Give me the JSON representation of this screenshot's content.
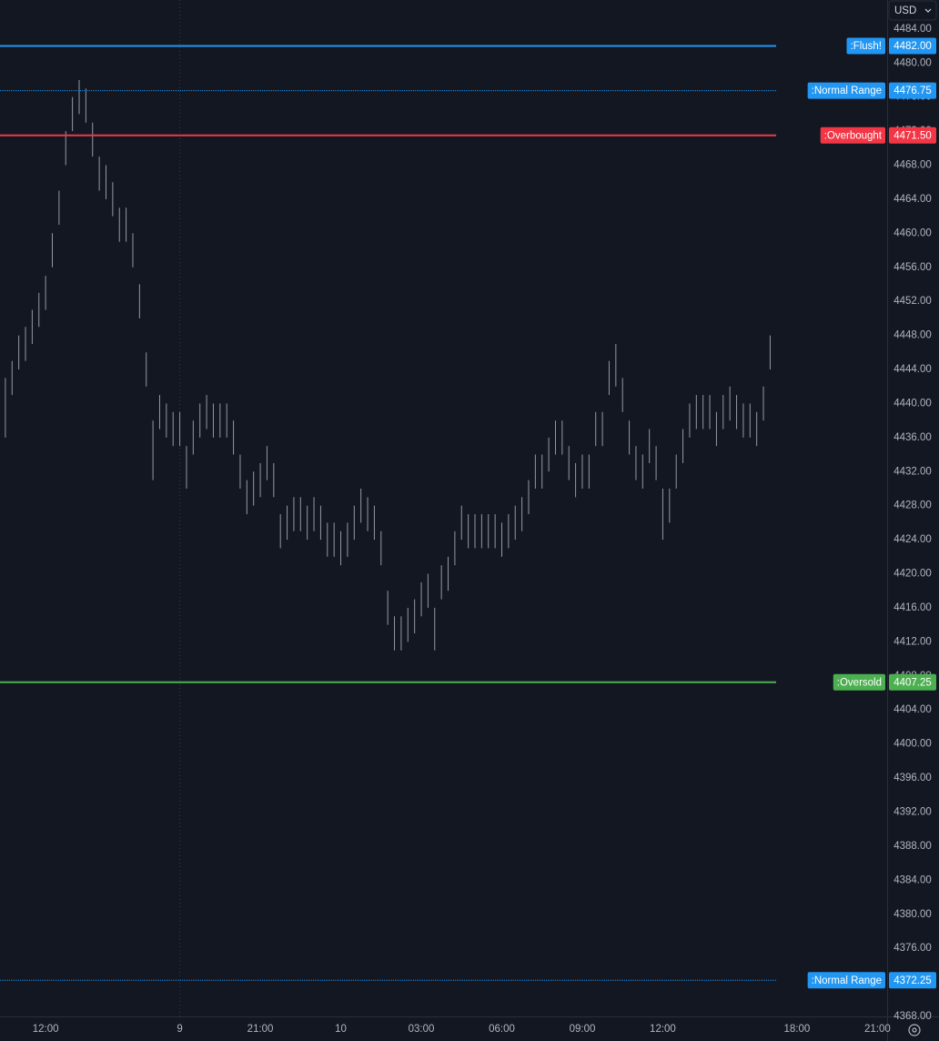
{
  "chart_data": {
    "type": "range",
    "currency": "USD",
    "bar_color": "#9598a1",
    "grid": false,
    "xlim": [
      10.3,
      43.36
    ],
    "xticks": [
      {
        "value": 12,
        "label": "12:00"
      },
      {
        "value": 17,
        "label": "9"
      },
      {
        "value": 20,
        "label": "21:00"
      },
      {
        "value": 23,
        "label": "10"
      },
      {
        "value": 26,
        "label": "03:00"
      },
      {
        "value": 29,
        "label": "06:00"
      },
      {
        "value": 32,
        "label": "09:00"
      },
      {
        "value": 35,
        "label": "12:00"
      },
      {
        "value": 40,
        "label": "18:00"
      },
      {
        "value": 43,
        "label": "21:00"
      }
    ],
    "day_divider": 17,
    "ylim": [
      4368,
      4487.4
    ],
    "yticks": [
      {
        "value": 4484,
        "label": "4484.00"
      },
      {
        "value": 4480,
        "label": "4480.00"
      },
      {
        "value": 4476,
        "label": "4476.00"
      },
      {
        "value": 4472,
        "label": "4472.00"
      },
      {
        "value": 4468,
        "label": "4468.00"
      },
      {
        "value": 4464,
        "label": "4464.00"
      },
      {
        "value": 4460,
        "label": "4460.00"
      },
      {
        "value": 4456,
        "label": "4456.00"
      },
      {
        "value": 4452,
        "label": "4452.00"
      },
      {
        "value": 4448,
        "label": "4448.00"
      },
      {
        "value": 4444,
        "label": "4444.00"
      },
      {
        "value": 4440,
        "label": "4440.00"
      },
      {
        "value": 4436,
        "label": "4436.00"
      },
      {
        "value": 4432,
        "label": "4432.00"
      },
      {
        "value": 4428,
        "label": "4428.00"
      },
      {
        "value": 4424,
        "label": "4424.00"
      },
      {
        "value": 4420,
        "label": "4420.00"
      },
      {
        "value": 4416,
        "label": "4416.00"
      },
      {
        "value": 4412,
        "label": "4412.00"
      },
      {
        "value": 4408,
        "label": "4408.00"
      },
      {
        "value": 4404,
        "label": "4404.00"
      },
      {
        "value": 4400,
        "label": "4400.00"
      },
      {
        "value": 4396,
        "label": "4396.00"
      },
      {
        "value": 4392,
        "label": "4392.00"
      },
      {
        "value": 4388,
        "label": "4388.00"
      },
      {
        "value": 4384,
        "label": "4384.00"
      },
      {
        "value": 4380,
        "label": "4380.00"
      },
      {
        "value": 4376,
        "label": "4376.00"
      },
      {
        "value": 4372,
        "label": "4372.00"
      },
      {
        "value": 4368,
        "label": "4368.00"
      }
    ],
    "levels": [
      {
        "name": ":Flush!",
        "value": 4482,
        "value_label": "4482.00",
        "color": "#2196f3",
        "style": "solid"
      },
      {
        "name": ":Normal Range",
        "value": 4476.75,
        "value_label": "4476.75",
        "color": "#2196f3",
        "style": "dotted"
      },
      {
        "name": ":Overbought",
        "value": 4471.5,
        "value_label": "4471.50",
        "color": "#f23645",
        "style": "solid"
      },
      {
        "name": ":Oversold",
        "value": 4407.25,
        "value_label": "4407.25",
        "color": "#4caf50",
        "style": "solid"
      },
      {
        "name": ":Normal Range",
        "value": 4372.25,
        "value_label": "4372.25",
        "color": "#2196f3",
        "style": "dotted"
      }
    ],
    "x": [
      10.5,
      10.75,
      11,
      11.25,
      11.5,
      11.75,
      12,
      12.25,
      12.5,
      12.75,
      13,
      13.25,
      13.5,
      13.75,
      14,
      14.25,
      14.5,
      14.75,
      15,
      15.25,
      15.5,
      15.75,
      16,
      16.25,
      16.5,
      16.75,
      17,
      17.25,
      17.5,
      17.75,
      18,
      18.25,
      18.5,
      18.75,
      19,
      19.25,
      19.5,
      19.75,
      20,
      20.25,
      20.5,
      20.75,
      21,
      21.25,
      21.5,
      21.75,
      22,
      22.25,
      22.5,
      22.75,
      23,
      23.25,
      23.5,
      23.75,
      24,
      24.25,
      24.5,
      24.75,
      25,
      25.25,
      25.5,
      25.75,
      26,
      26.25,
      26.5,
      26.75,
      27,
      27.25,
      27.5,
      27.75,
      28,
      28.25,
      28.5,
      28.75,
      29,
      29.25,
      29.5,
      29.75,
      30,
      30.25,
      30.5,
      30.75,
      31,
      31.25,
      31.5,
      31.75,
      32,
      32.25,
      32.5,
      32.75,
      33,
      33.25,
      33.5,
      33.75,
      34,
      34.25,
      34.5,
      34.75,
      35,
      35.25,
      35.5,
      35.75,
      36,
      36.25,
      36.5,
      36.75,
      37,
      37.25,
      37.5,
      37.75,
      38,
      38.25,
      38.5,
      38.75,
      39
    ],
    "high": [
      4443,
      4445,
      4448,
      4449,
      4451,
      4453,
      4455,
      4460,
      4465,
      4472,
      4476,
      4478,
      4477,
      4473,
      4469,
      4468,
      4466,
      4463,
      4463,
      4460,
      4454,
      4446,
      4438,
      4441,
      4440,
      4439,
      4439,
      4435,
      4438,
      4440,
      4441,
      4440,
      4440,
      4440,
      4438,
      4434,
      4431,
      4432,
      4433,
      4435,
      4433,
      4427,
      4428,
      4429,
      4429,
      4428,
      4429,
      4428,
      4426,
      4426,
      4425,
      4426,
      4428,
      4430,
      4429,
      4428,
      4425,
      4418,
      4415,
      4415,
      4416,
      4417,
      4419,
      4420,
      4416,
      4421,
      4422,
      4425,
      4428,
      4427,
      4427,
      4427,
      4427,
      4427,
      4426,
      4427,
      4428,
      4429,
      4431,
      4434,
      4434,
      4436,
      4438,
      4438,
      4435,
      4433,
      4434,
      4434,
      4439,
      4439,
      4445,
      4447,
      4443,
      4438,
      4435,
      4434,
      4437,
      4435,
      4430,
      4430,
      4434,
      4437,
      4440,
      4441,
      4441,
      4441,
      4439,
      4441,
      4442,
      4441,
      4440,
      4440,
      4439,
      4442,
      4448
    ],
    "low": [
      4436,
      4441,
      4444,
      4445,
      4447,
      4449,
      4451,
      4456,
      4461,
      4468,
      4472,
      4474,
      4473,
      4469,
      4465,
      4464,
      4462,
      4459,
      4459,
      4456,
      4450,
      4442,
      4431,
      4437,
      4436,
      4435,
      4435,
      4430,
      4434,
      4436,
      4437,
      4436,
      4436,
      4436,
      4434,
      4430,
      4427,
      4428,
      4429,
      4431,
      4429,
      4423,
      4424,
      4425,
      4425,
      4424,
      4425,
      4424,
      4422,
      4422,
      4421,
      4422,
      4424,
      4426,
      4425,
      4424,
      4421,
      4414,
      4411,
      4411,
      4412,
      4413,
      4415,
      4416,
      4411,
      4417,
      4418,
      4421,
      4424,
      4423,
      4423,
      4423,
      4423,
      4423,
      4422,
      4423,
      4424,
      4425,
      4427,
      4430,
      4430,
      4432,
      4434,
      4434,
      4431,
      4429,
      4430,
      4430,
      4435,
      4435,
      4441,
      4442,
      4439,
      4434,
      4431,
      4430,
      4433,
      4431,
      4424,
      4426,
      4430,
      4433,
      4436,
      4437,
      4437,
      4437,
      4435,
      4437,
      4438,
      4437,
      4436,
      4436,
      4435,
      4438,
      4444
    ]
  }
}
